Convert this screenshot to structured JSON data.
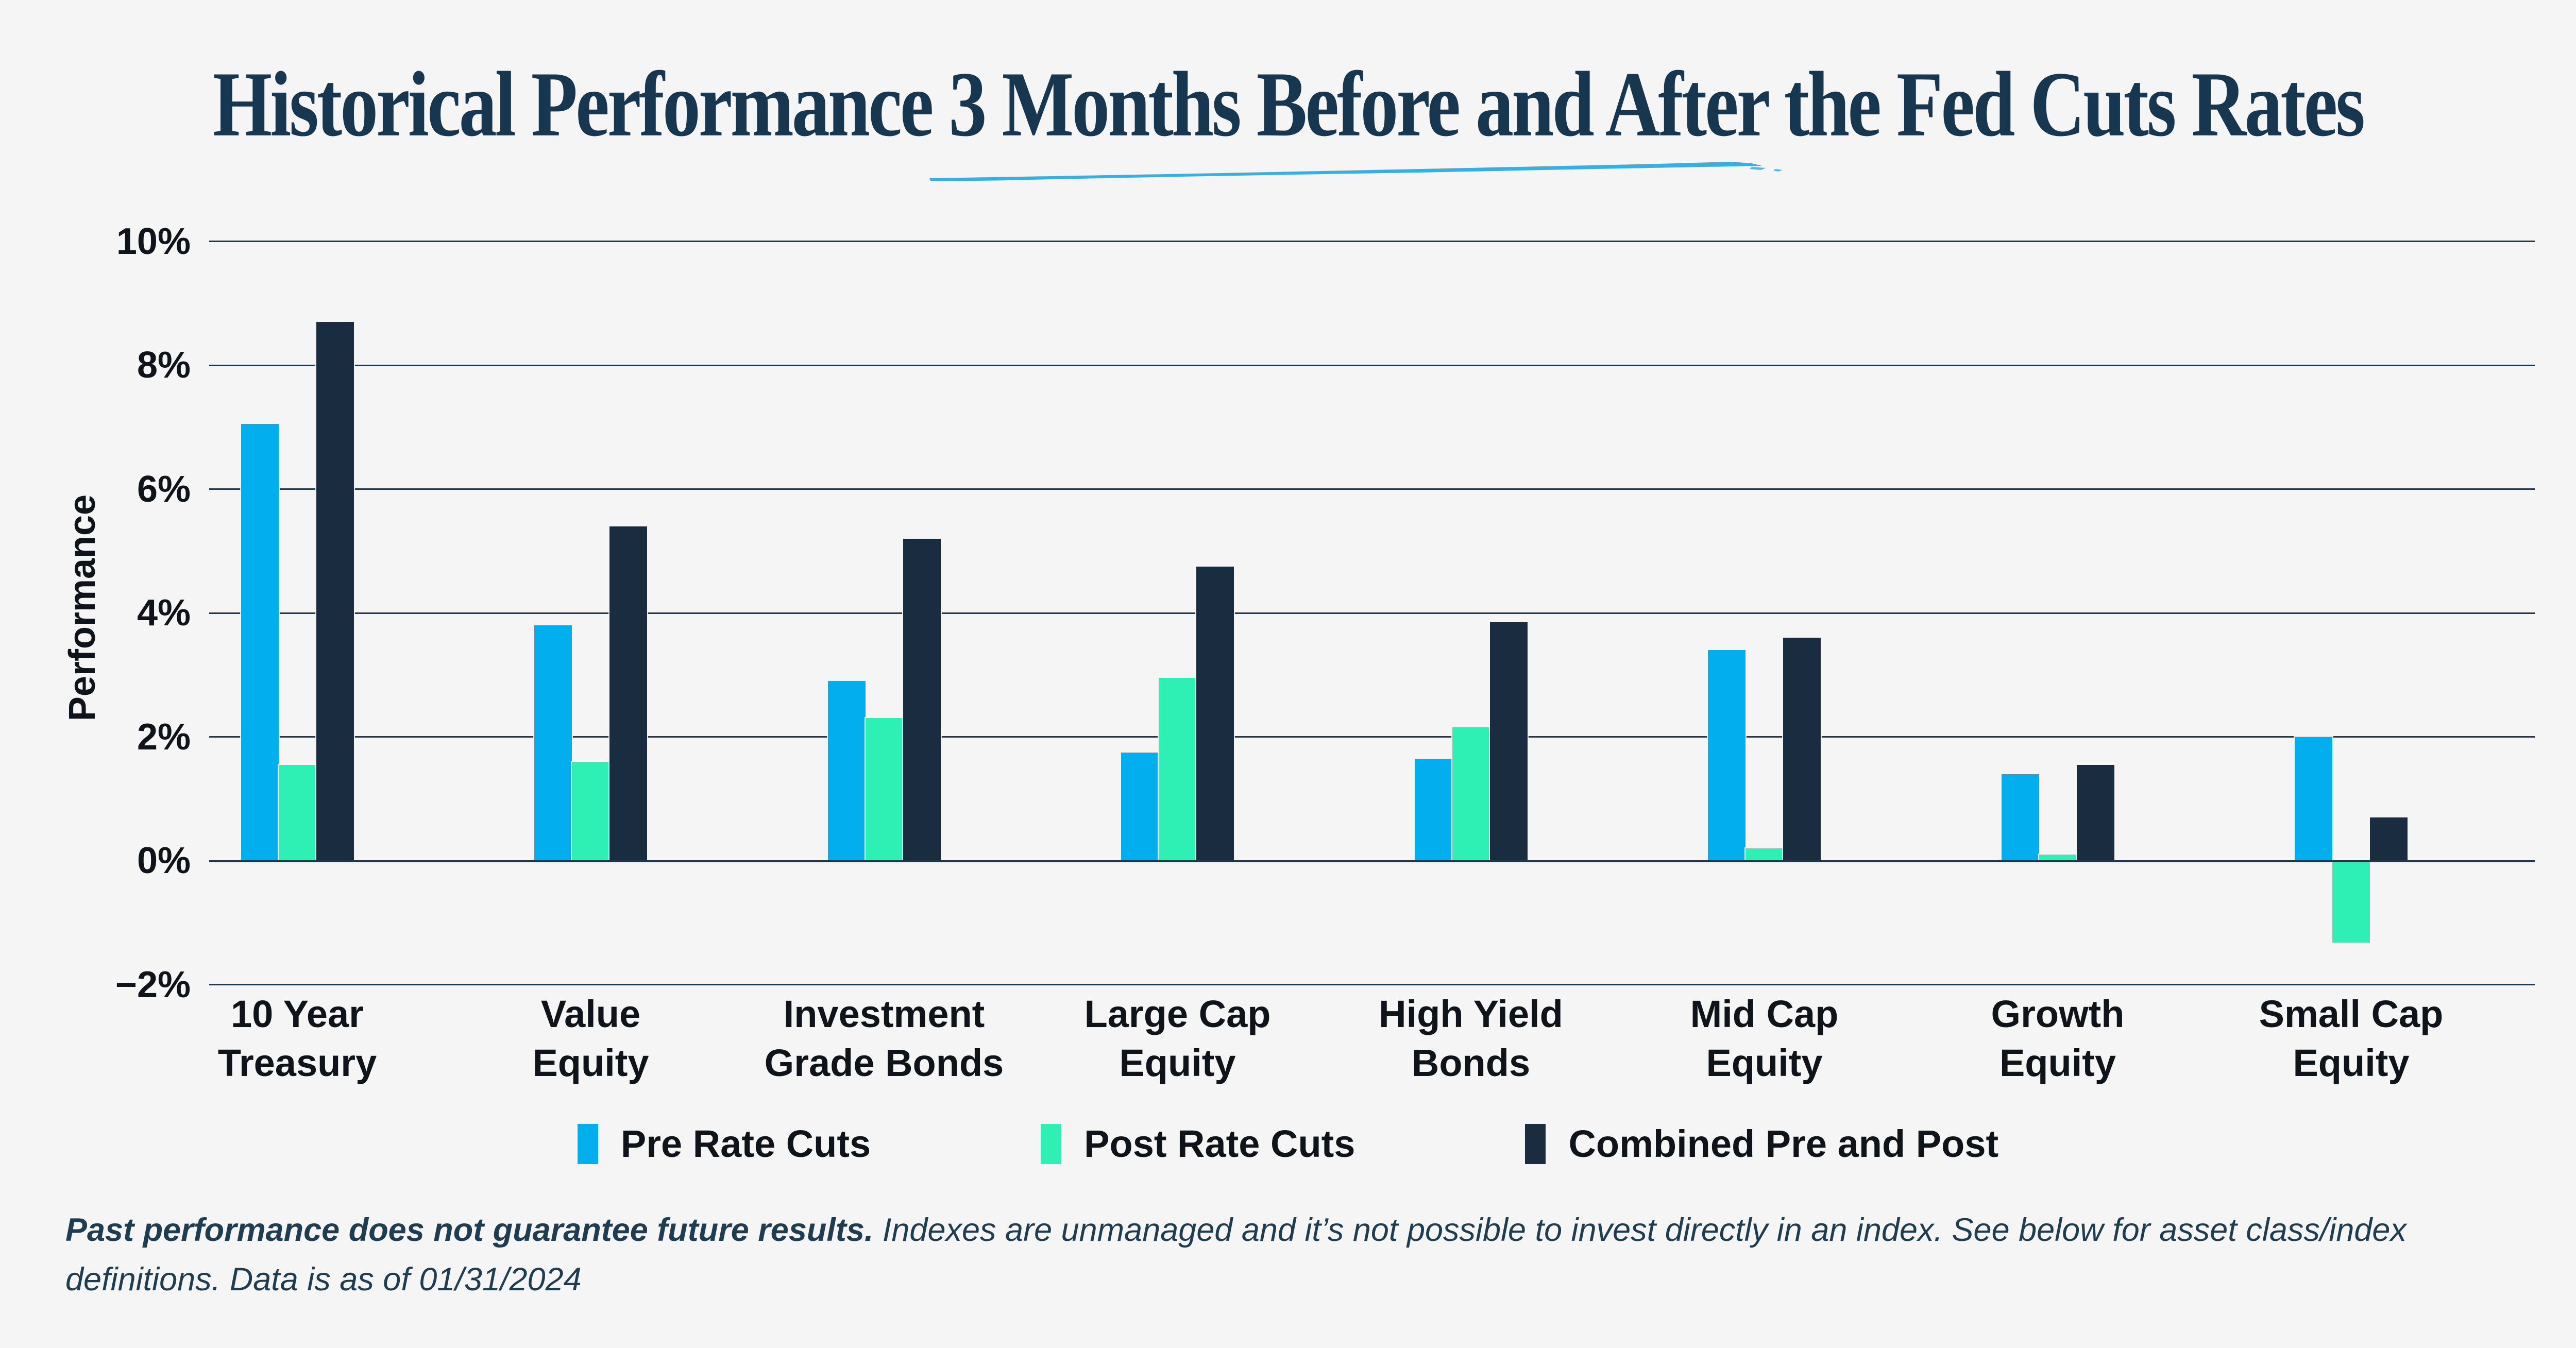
{
  "page": {
    "background": "#F5F5F6"
  },
  "title": {
    "text": "Historical Performance 3 Months Before and After the Fed Cuts Rates",
    "color": "#17364F",
    "underline_color": "#27A8E0"
  },
  "chart_data": {
    "type": "bar",
    "title": "Historical Performance 3 Months Before and After the Fed Cuts Rates",
    "xlabel": "",
    "ylabel": "Performance",
    "ylim": [
      -2,
      10
    ],
    "grid": true,
    "legend_position": "bottom",
    "yticks": [
      10,
      8,
      6,
      4,
      2,
      0,
      -2
    ],
    "ytick_labels": [
      "10%",
      "8%",
      "6%",
      "4%",
      "2%",
      "0%",
      "−2%"
    ],
    "categories": [
      [
        "10 Year",
        "Treasury"
      ],
      [
        "Value",
        "Equity"
      ],
      [
        "Investment",
        "Grade Bonds"
      ],
      [
        "Large Cap",
        "Equity"
      ],
      [
        "High Yield",
        "Bonds"
      ],
      [
        "Mid Cap",
        "Equity"
      ],
      [
        "Growth",
        "Equity"
      ],
      [
        "Small Cap",
        "Equity"
      ]
    ],
    "series": [
      {
        "name": "Pre Rate Cuts",
        "color": "#03AEEF",
        "values": [
          7.05,
          3.8,
          2.9,
          1.75,
          1.65,
          3.4,
          1.4,
          2.0
        ]
      },
      {
        "name": "Post Rate Cuts",
        "color": "#2FF0B4",
        "values": [
          1.55,
          1.6,
          2.3,
          2.95,
          2.15,
          0.2,
          0.1,
          -1.3
        ]
      },
      {
        "name": "Combined Pre and Post",
        "color": "#1A2C3F",
        "values": [
          8.7,
          5.4,
          5.2,
          4.75,
          3.85,
          3.6,
          1.55,
          0.7
        ]
      }
    ]
  },
  "footer": {
    "bold_text": "Past performance does not guarantee future results.",
    "regular_text": " Indexes are unmanaged and it’s not possible to invest directly in an index. See below for asset class/index definitions. Data is as of 01/31/2024"
  }
}
